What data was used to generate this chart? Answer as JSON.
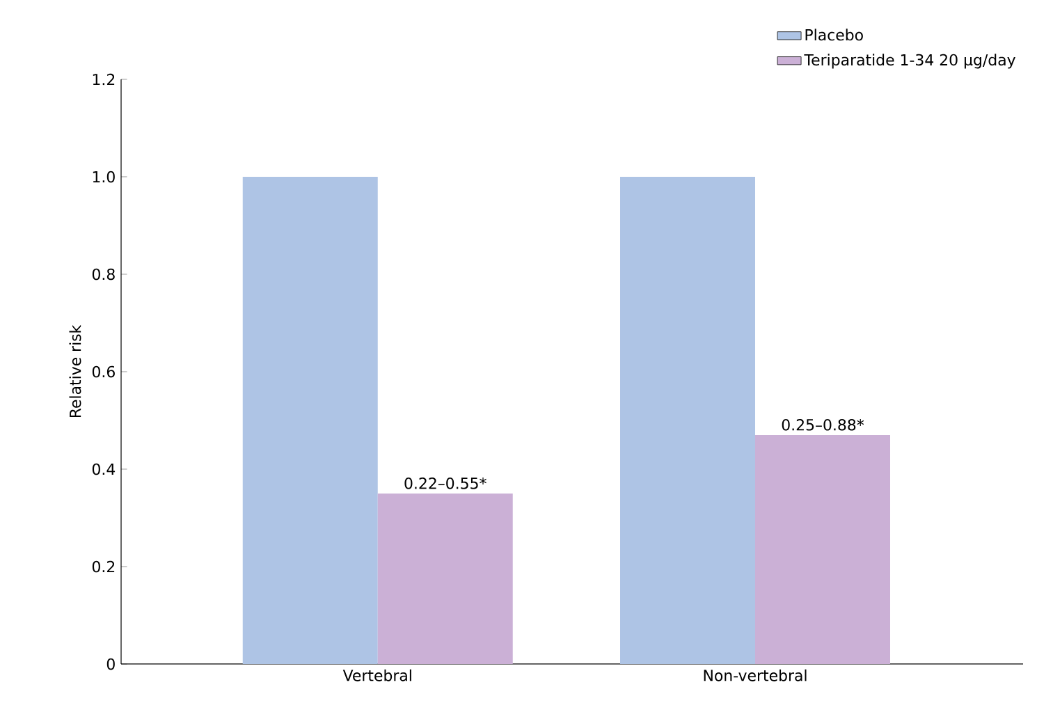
{
  "chart_data": {
    "type": "bar",
    "ylabel": "Relative risk",
    "categories": [
      "Vertebral",
      "Non-vertebral"
    ],
    "series": [
      {
        "name": "Placebo",
        "color": "#aec4e5",
        "values": [
          1.0,
          1.0
        ]
      },
      {
        "name": "Teriparatide 1-34 20 µg/day",
        "color": "#cbb0d6",
        "values": [
          0.35,
          0.47
        ],
        "value_labels": [
          null,
          null
        ]
      }
    ],
    "annotations": [
      {
        "text": "0.22–0.55*",
        "x": "Vertebral",
        "y": 0.35
      },
      {
        "text": "0.25–0.88*",
        "x": "Non-vertebral",
        "y": 0.47
      }
    ],
    "ylim": [
      0,
      1.2
    ],
    "yticks": [
      0,
      {
        "value": 0.2,
        "label": "0.2"
      },
      {
        "value": 0.4,
        "label": "0.4"
      },
      {
        "value": 0.6,
        "label": "0.6"
      },
      {
        "value": 0.8,
        "label": "0.8"
      },
      {
        "value": 1.0,
        "label": "1.0"
      },
      {
        "value": 1.2,
        "label": "1.2"
      }
    ],
    "grid": false,
    "legend": "top right"
  }
}
